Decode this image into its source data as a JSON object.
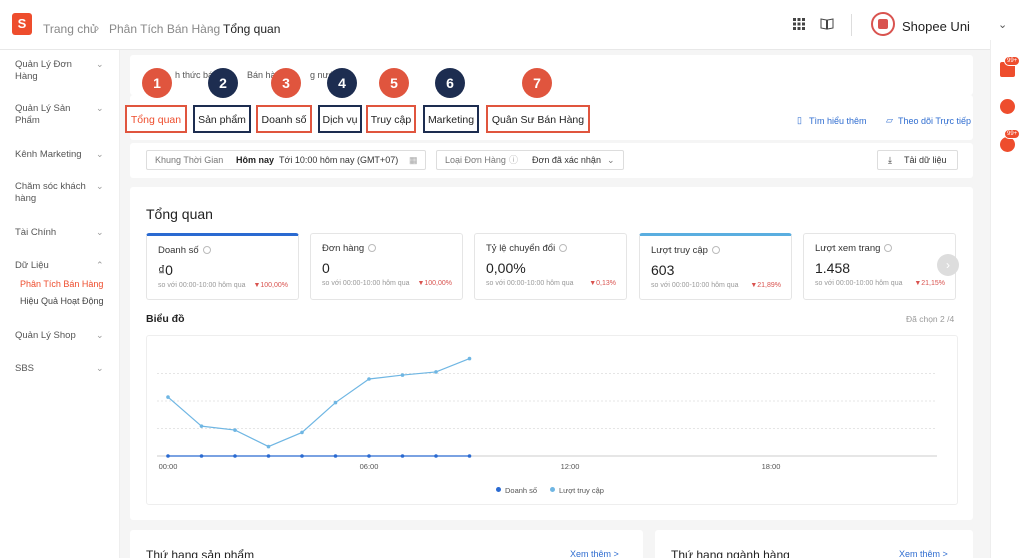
{
  "topbar": {
    "logo": "S",
    "breadcrumb": [
      "Trang chủ",
      "Phân Tích Bán Hàng",
      "Tổng quan"
    ],
    "user": "Shopee Uni",
    "icons": [
      "apps-grid-icon",
      "book-icon",
      "chevron-down-icon"
    ]
  },
  "sidebar": {
    "groups": [
      {
        "label": "Quản Lý Đơn Hàng"
      },
      {
        "label": "Quản Lý Sản Phẩm"
      },
      {
        "label": "Kênh Marketing"
      },
      {
        "label": "Chăm sóc khách hàng"
      },
      {
        "label": "Tài Chính"
      },
      {
        "label": "Dữ Liệu"
      },
      {
        "label": "Quản Lý Shop"
      },
      {
        "label": "SBS"
      }
    ],
    "subitems": [
      "Phân Tích Bán Hàng",
      "Hiệu Quả Hoạt Động"
    ]
  },
  "partial_text": {
    "a": "h thức bá",
    "b": "Bán hà",
    "c": "g nướ"
  },
  "tabs": [
    {
      "label": "Tổng quan",
      "number": "1",
      "color": "#e0553e"
    },
    {
      "label": "Sản phẩm",
      "number": "2",
      "color": "#1d2d50"
    },
    {
      "label": "Doanh số",
      "number": "3",
      "color": "#e0553e"
    },
    {
      "label": "Dịch vụ",
      "number": "4",
      "color": "#1d2d50"
    },
    {
      "label": "Truy cập",
      "number": "5",
      "color": "#e0553e"
    },
    {
      "label": "Marketing",
      "number": "6",
      "color": "#1d2d50"
    },
    {
      "label": "Quân Sư Bán Hàng",
      "number": "7",
      "color": "#e0553e"
    }
  ],
  "links": {
    "learn_more": "Tìm hiểu thêm",
    "live": "Theo dõi Trực tiếp"
  },
  "filters": {
    "time_label": "Khung Thời Gian",
    "time_value": "Hôm nay",
    "time_range": "Tới 10:00 hôm nay (GMT+07)",
    "order_type_label": "Loại Đơn Hàng",
    "order_type_value": "Đơn đã xác nhận",
    "download": "Tải dữ liệu"
  },
  "overview": {
    "title": "Tổng quan",
    "kpis": [
      {
        "label": "Doanh số",
        "value": "₫0",
        "compare": "so với 00:00-10:00 hôm qua",
        "change": "▼100,00%"
      },
      {
        "label": "Đơn hàng",
        "value": "0",
        "compare": "so với 00:00-10:00 hôm qua",
        "change": "▼100,00%"
      },
      {
        "label": "Tỷ lệ chuyển đổi",
        "value": "0,00%",
        "compare": "so với 00:00-10:00 hôm qua",
        "change": "▼0,13%"
      },
      {
        "label": "Lượt truy cập",
        "value": "603",
        "compare": "so với 00:00-10:00 hôm qua",
        "change": "▼21,89%"
      },
      {
        "label": "Lượt xem trang",
        "value": "1.458",
        "compare": "so với 00:00-10:00 hôm qua",
        "change": "▼21,15%"
      }
    ]
  },
  "chart_section": {
    "title": "Biểu đồ",
    "selected": "Đã chọn 2 /4"
  },
  "chart_data": {
    "type": "line",
    "x": [
      "00:00",
      "01:00",
      "02:00",
      "03:00",
      "04:00",
      "05:00",
      "06:00",
      "07:00",
      "08:00",
      "09:00"
    ],
    "xticks": [
      "00:00",
      "06:00",
      "12:00",
      "18:00"
    ],
    "series": [
      {
        "name": "Doanh số",
        "color": "#2a6ad1",
        "values": [
          0,
          0,
          0,
          0,
          0,
          0,
          0,
          0,
          0,
          0
        ]
      },
      {
        "name": "Lượt truy cập",
        "color": "#6fb6e3",
        "values": [
          75,
          38,
          33,
          12,
          30,
          68,
          98,
          103,
          107,
          124
        ]
      }
    ],
    "ylim": [
      0,
      140
    ],
    "grid": true
  },
  "bottom": {
    "left_title": "Thứ hạng sản phẩm",
    "right_title": "Thứ hạng ngành hàng",
    "more": "Xem thêm >"
  }
}
